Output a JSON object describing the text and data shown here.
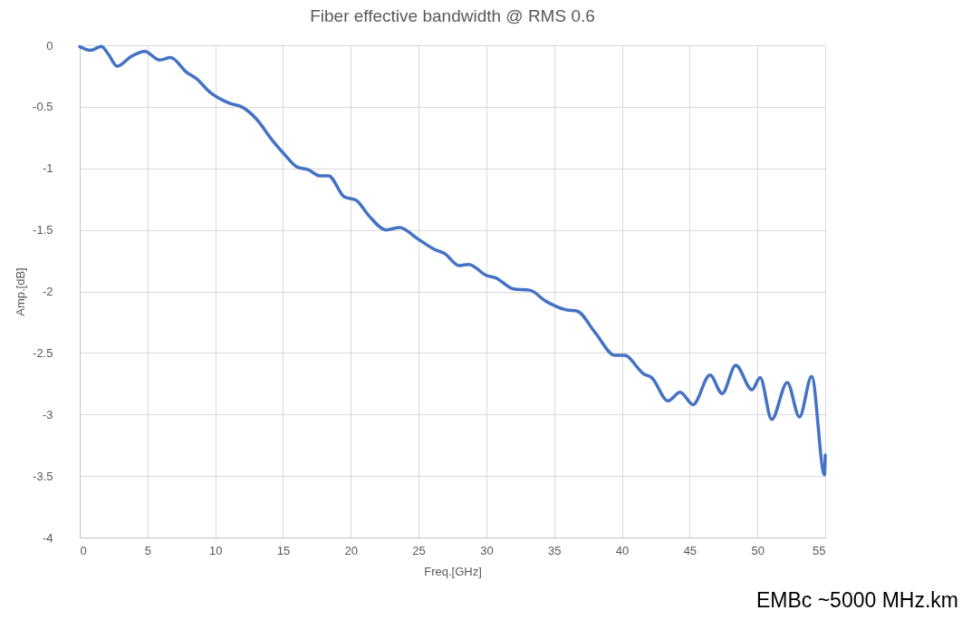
{
  "chart_data": {
    "type": "line",
    "title": "Fiber effective bandwidth @ RMS 0.6",
    "xlabel": "Freq.[GHz]",
    "ylabel": "Amp.[dB]",
    "annotations": [
      "EMBc ~5000 MHz.km"
    ],
    "xlim": [
      0,
      55
    ],
    "xticks": [
      0,
      5,
      10,
      15,
      20,
      25,
      30,
      35,
      40,
      45,
      50,
      55
    ],
    "ylim": [
      -4,
      0
    ],
    "yticks": [
      -4,
      -3.5,
      -3,
      -2.5,
      -2,
      -1.5,
      -1,
      -0.5,
      0
    ],
    "grid": true,
    "marker": "none",
    "line_style": "solid",
    "series": [
      {
        "color": "#4472c4",
        "x": [
          0,
          0.8,
          1.6,
          2.1,
          2.76,
          3.8,
          4.8,
          5.9,
          6.7,
          7.9,
          8.6,
          9.6,
          11.05,
          11.95,
          13.05,
          14.2,
          15.06,
          16.06,
          16.85,
          17.7,
          18.36,
          19.5,
          20.4,
          21.3,
          22.6,
          23.6,
          24.9,
          26.2,
          26.9,
          28.0,
          28.7,
          30.0,
          30.7,
          32.0,
          33.2,
          34.4,
          35.9,
          36.7,
          38.0,
          39.5,
          40.2,
          41.6,
          42.2,
          43.4,
          44.3,
          45.25,
          46.5,
          47.4,
          48.4,
          49.6,
          50.2,
          51.05,
          52.2,
          53.1,
          54.0,
          54.95,
          55
        ],
        "values": [
          -0.01,
          -0.04,
          -0.01,
          -0.07,
          -0.17,
          -0.09,
          -0.05,
          -0.12,
          -0.1,
          -0.22,
          -0.27,
          -0.38,
          -0.47,
          -0.5,
          -0.6,
          -0.77,
          -0.88,
          -0.99,
          -1.01,
          -1.06,
          -1.06,
          -1.23,
          -1.26,
          -1.38,
          -1.5,
          -1.48,
          -1.57,
          -1.66,
          -1.69,
          -1.79,
          -1.78,
          -1.87,
          -1.89,
          -1.98,
          -1.99,
          -2.08,
          -2.15,
          -2.16,
          -2.33,
          -2.52,
          -2.52,
          -2.67,
          -2.7,
          -2.89,
          -2.82,
          -2.92,
          -2.68,
          -2.83,
          -2.6,
          -2.8,
          -2.7,
          -3.04,
          -2.74,
          -3.02,
          -2.69,
          -3.49,
          -3.33
        ]
      }
    ]
  }
}
